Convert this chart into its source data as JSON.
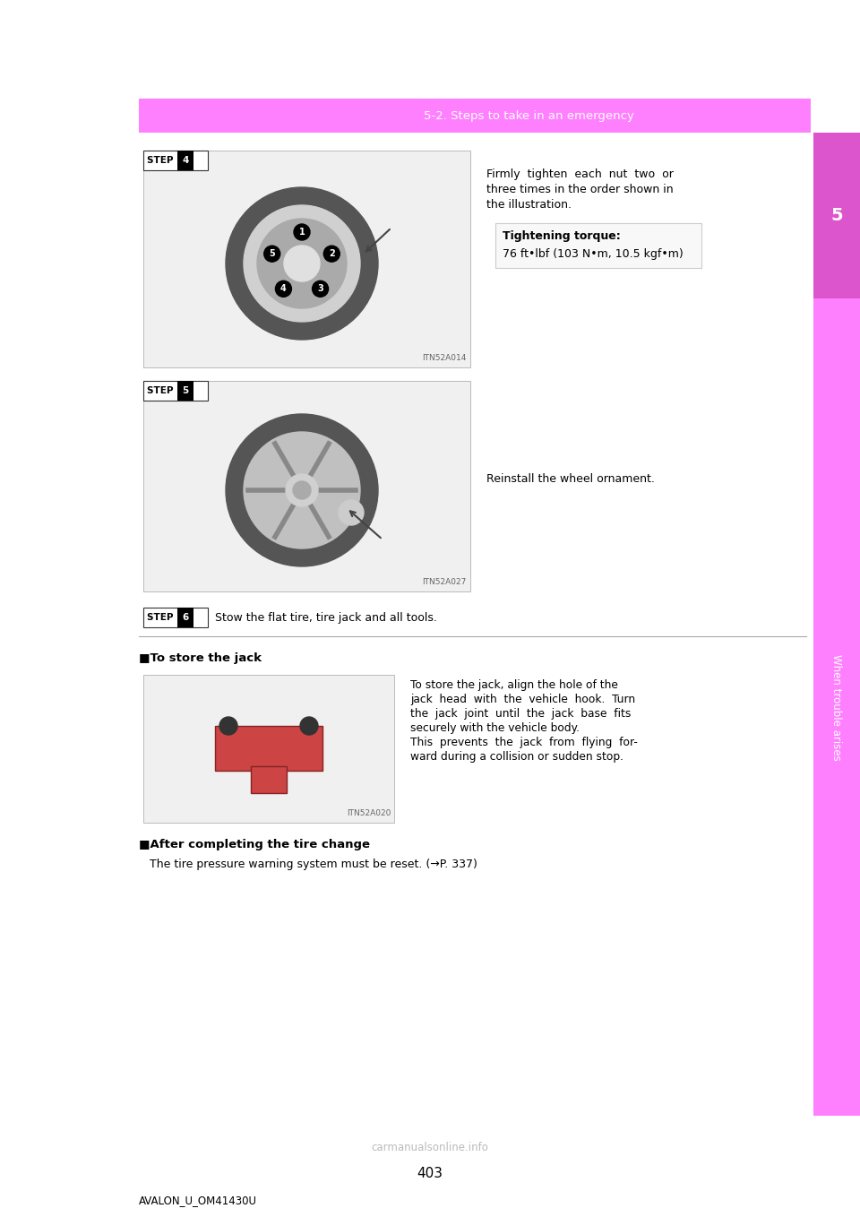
{
  "page_bg": "#ffffff",
  "header_bar_color": "#ff80ff",
  "header_text": "5-2. Steps to take in an emergency",
  "header_text_color": "#ffffff",
  "sidebar_color": "#ff80ff",
  "sidebar_tab_color": "#dd55cc",
  "page_number": "403",
  "footer_doc_id": "AVALON_U_OM41430U",
  "step4_label": "STEP",
  "step4_num": "4",
  "step4_text_line1": "Firmly  tighten  each  nut  two  or",
  "step4_text_line2": "three times in the order shown in",
  "step4_text_line3": "the illustration.",
  "step4_bold_label": "Tightening torque:",
  "step4_torque": "76 ft•lbf (103 N•m, 10.5 kgf•m)",
  "step4_img_label": "ITN52A014",
  "step5_label": "STEP",
  "step5_num": "5",
  "step5_text": "Reinstall the wheel ornament.",
  "step5_img_label": "ITN52A027",
  "step6_label": "STEP",
  "step6_num": "6",
  "step6_text": "Stow the flat tire, tire jack and all tools.",
  "jack_section_title": "■To store the jack",
  "jack_img_label": "ITN52A020",
  "jack_text_line1": "To store the jack, align the hole of the",
  "jack_text_line2": "jack  head  with  the  vehicle  hook.  Turn",
  "jack_text_line3": "the  jack  joint  until  the  jack  base  fits",
  "jack_text_line4": "securely with the vehicle body.",
  "jack_text_line5": "This  prevents  the  jack  from  flying  for-",
  "jack_text_line6": "ward during a collision or sudden stop.",
  "complete_title": "■After completing the tire change",
  "complete_text": "The tire pressure warning system must be reset. (→P. 337)",
  "watermark_text": "carmanualsonline.info"
}
